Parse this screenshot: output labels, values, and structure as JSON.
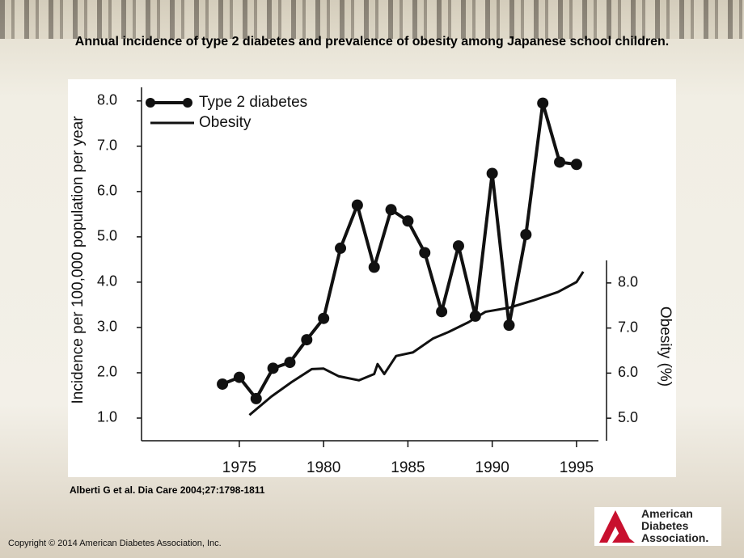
{
  "title": "Annual incidence of type 2 diabetes and prevalence of obesity among Japanese school children.",
  "citation": "Alberti G et al. Dia Care 2004;27:1798-1811",
  "copyright": "Copyright © 2014 American Diabetes Association, Inc.",
  "logo": [
    "American",
    "Diabetes",
    "Association."
  ],
  "chart_data": {
    "type": "line",
    "y_label": "Incidence per 100,000 population per year",
    "y2_label": "Obesity (%)",
    "xlim": [
      1969.2,
      1996.3
    ],
    "xticks": [
      1975,
      1980,
      1985,
      1990,
      1995
    ],
    "ylim": [
      0.5,
      8.3
    ],
    "yticks": [
      {
        "value": 1,
        "label": "1.0"
      },
      {
        "value": 2,
        "label": "2.0"
      },
      {
        "value": 3,
        "label": "3.0"
      },
      {
        "value": 4,
        "label": "4.0"
      },
      {
        "value": 5,
        "label": "5.0"
      },
      {
        "value": 6,
        "label": "6.0"
      },
      {
        "value": 7,
        "label": "7.0"
      },
      {
        "value": 8,
        "label": "8.0"
      }
    ],
    "y2lim": [
      4.5,
      8.5
    ],
    "y2ticks": [
      {
        "value": 5,
        "label": "5.0"
      },
      {
        "value": 6,
        "label": "6.0"
      },
      {
        "value": 7,
        "label": "7.0"
      },
      {
        "value": 8,
        "label": "8.0"
      }
    ],
    "series": [
      {
        "name": "Type 2 diabetes",
        "color": "#111111",
        "markers": true,
        "x": [
          1974,
          1975,
          1976,
          1977,
          1978,
          1979,
          1980,
          1981,
          1982,
          1983,
          1984,
          1985,
          1986,
          1987,
          1988,
          1989,
          1990,
          1991,
          1992,
          1993,
          1994,
          1995
        ],
        "values": [
          1.75,
          1.9,
          1.43,
          2.1,
          2.23,
          2.73,
          3.2,
          4.75,
          5.7,
          4.33,
          5.6,
          5.35,
          4.65,
          3.35,
          4.8,
          3.25,
          6.4,
          3.05,
          5.05,
          7.95,
          6.65,
          6.6
        ]
      },
      {
        "name": "Obesity",
        "color": "#111111",
        "markers": false,
        "axis": "y2",
        "x": [
          1975.6,
          1976.9,
          1978.1,
          1979.3,
          1980.0,
          1980.9,
          1982.1,
          1983.0,
          1983.2,
          1983.6,
          1984.3,
          1985.3,
          1986.5,
          1987.4,
          1988.6,
          1989.6,
          1991.0,
          1992.5,
          1993.9,
          1995.0,
          1995.4
        ],
        "values": [
          5.07,
          5.48,
          5.8,
          6.09,
          6.1,
          5.93,
          5.84,
          5.98,
          6.2,
          5.98,
          6.38,
          6.46,
          6.77,
          6.91,
          7.13,
          7.36,
          7.45,
          7.62,
          7.8,
          8.02,
          8.25
        ]
      }
    ]
  }
}
